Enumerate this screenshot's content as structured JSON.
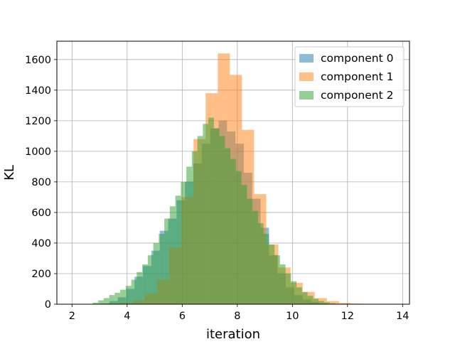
{
  "chart_data": {
    "type": "histogram",
    "xlabel": "iteration",
    "ylabel": "KL",
    "xlim": [
      1.45,
      14.25
    ],
    "ylim": [
      0,
      1720
    ],
    "xticks": [
      2,
      4,
      6,
      8,
      10,
      12,
      14
    ],
    "yticks": [
      0,
      200,
      400,
      600,
      800,
      1000,
      1200,
      1400,
      1600
    ],
    "grid": true,
    "legend_position": "top-right",
    "series": [
      {
        "name": "component 0",
        "color": "#1f77b4",
        "bin_start": 3.05,
        "bin_width": 0.305,
        "counts": [
          5,
          20,
          45,
          100,
          180,
          250,
          350,
          480,
          560,
          680,
          800,
          920,
          1050,
          1150,
          1200,
          1130,
          1050,
          860,
          690,
          500,
          320,
          200,
          110,
          60,
          30,
          15,
          5
        ]
      },
      {
        "name": "component 1",
        "color": "#ff7f0e",
        "bin_start": 2.45,
        "bin_width": 0.44,
        "counts": [
          0,
          2,
          5,
          10,
          25,
          70,
          160,
          370,
          700,
          1080,
          1380,
          1640,
          1500,
          1140,
          720,
          390,
          240,
          140,
          80,
          40,
          20,
          8,
          4,
          1
        ]
      },
      {
        "name": "component 2",
        "color": "#2ca02c",
        "bin_start": 2.75,
        "bin_width": 0.2,
        "counts": [
          10,
          25,
          40,
          60,
          75,
          95,
          120,
          160,
          210,
          260,
          320,
          400,
          460,
          560,
          640,
          710,
          800,
          900,
          1000,
          1100,
          1180,
          1220,
          1150,
          1100,
          1020,
          950,
          870,
          780,
          690,
          610,
          530,
          460,
          390,
          320,
          260,
          200,
          150,
          110,
          80,
          55,
          35,
          20,
          12,
          6
        ]
      }
    ]
  }
}
